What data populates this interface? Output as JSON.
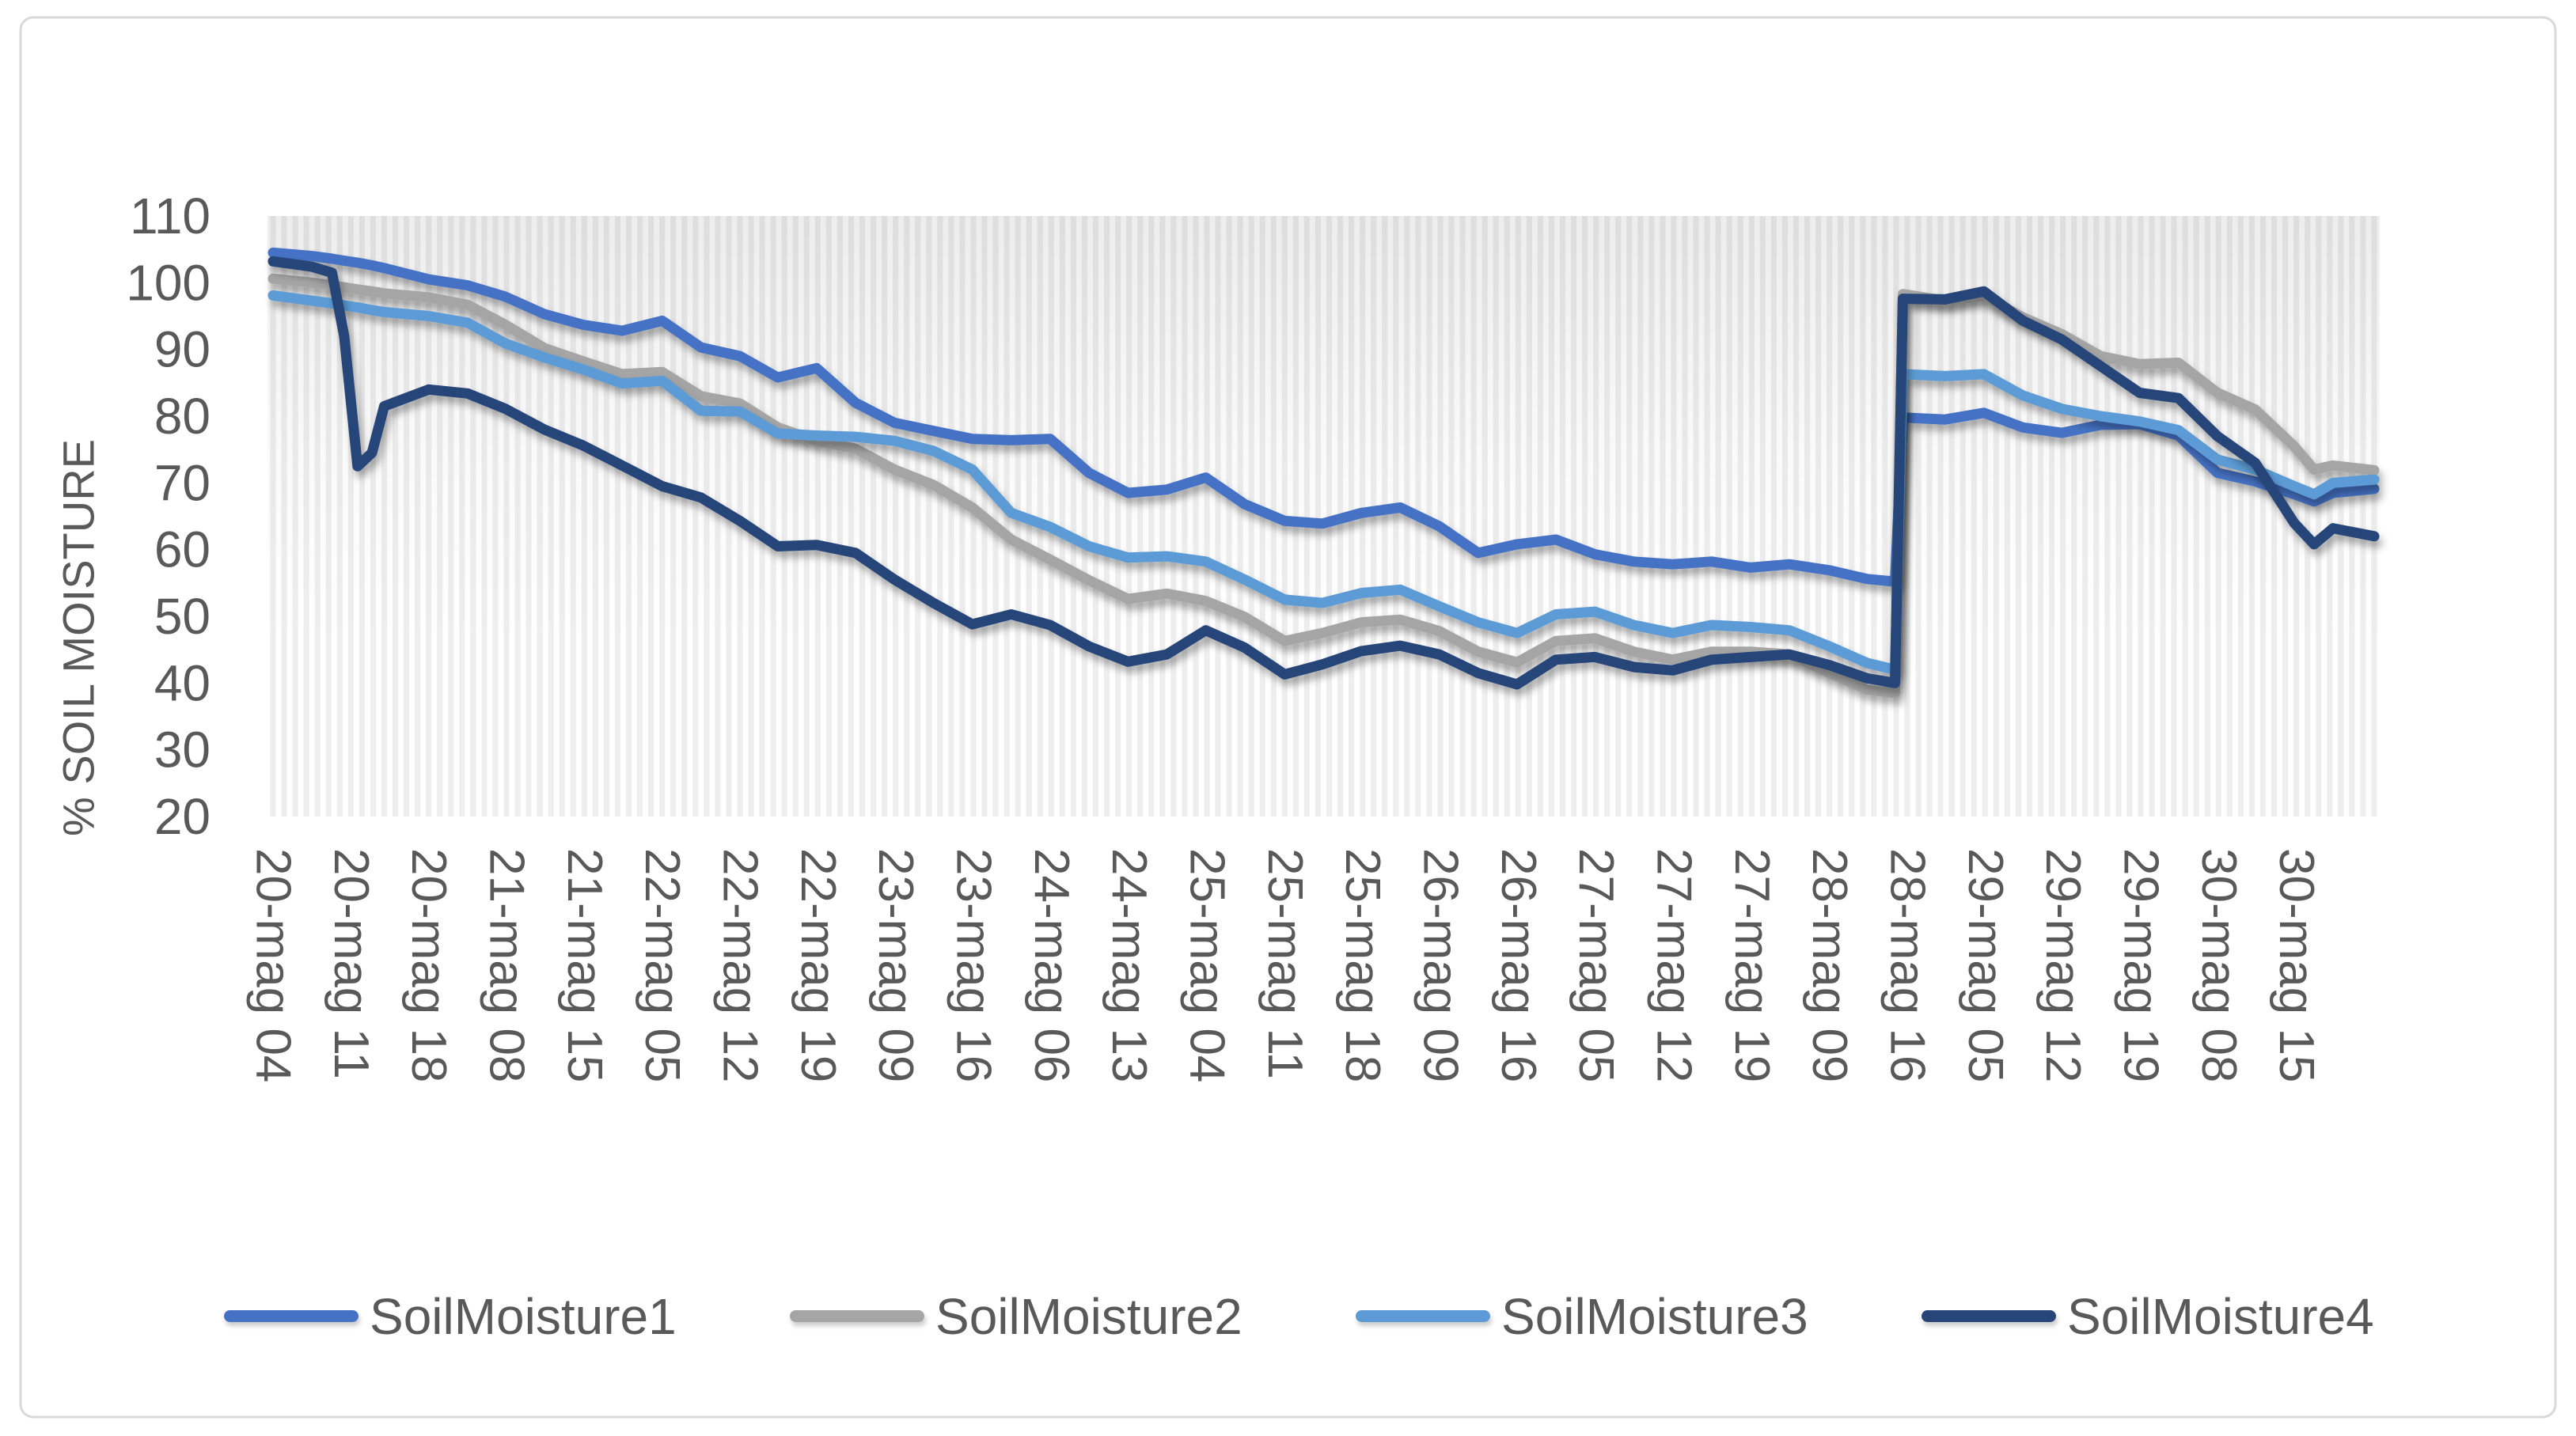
{
  "chart_data": {
    "type": "line",
    "title": "",
    "ylabel": "% SOIL MOISTURE",
    "xlabel": "",
    "ylim": [
      20,
      110
    ],
    "y_ticks": [
      110,
      100,
      90,
      80,
      70,
      60,
      50,
      40,
      30,
      20
    ],
    "x_tick_labels": [
      "20-mag 04",
      "20-mag 11",
      "20-mag 18",
      "21-mag 08",
      "21-mag 15",
      "22-mag 05",
      "22-mag 12",
      "22-mag 19",
      "23-mag 09",
      "23-mag 16",
      "24-mag 06",
      "24-mag 13",
      "25-mag 04",
      "25-mag 11",
      "25-mag 18",
      "26-mag 09",
      "26-mag 16",
      "27-mag 05",
      "27-mag 12",
      "27-mag 19",
      "28-mag 09",
      "28-mag 16",
      "29-mag 05",
      "29-mag 12",
      "29-mag 19",
      "30-mag 08",
      "30-mag 15"
    ],
    "x_label_step": 7,
    "x_categories_total": 190,
    "grid": "vertical-stripes",
    "legend_position": "bottom",
    "axis_text_color": "#595959",
    "border_color": "#D9D9D9",
    "sample_x_index": [
      0,
      3.5,
      5.3,
      6.4,
      7.6,
      8.9,
      10,
      14,
      17.5,
      20.9,
      24.4,
      27.9,
      31.4,
      35,
      38.5,
      42,
      45.4,
      48.9,
      52.4,
      55.9,
      59.4,
      62.9,
      66.4,
      69.9,
      73.4,
      76.9,
      80.4,
      83.9,
      87.4,
      91,
      94.4,
      97.9,
      101.4,
      104.9,
      108.4,
      111.9,
      115.4,
      118.9,
      122.4,
      125.9,
      129.4,
      132.9,
      136.4,
      140,
      143.4,
      145.9,
      146.6,
      150.4,
      153.9,
      157.4,
      160.9,
      164.4,
      167.9,
      171.4,
      174.9,
      178.3,
      181.8,
      183.6,
      185.3,
      189
    ],
    "series": [
      {
        "name": "SoilMoisture1",
        "color": "#4472C4",
        "values": [
          104.5,
          104,
          103.6,
          103.3,
          103,
          102.6,
          102.2,
          100.5,
          99.6,
          97.9,
          95.3,
          93.7,
          92.8,
          94.3,
          90.3,
          89,
          85.8,
          87.2,
          82,
          79,
          77.8,
          76.6,
          76.4,
          76.6,
          71.5,
          68.5,
          69,
          70.8,
          66.8,
          64.3,
          63.9,
          65.5,
          66.3,
          63.5,
          59.5,
          60.8,
          61.5,
          59.3,
          58.2,
          57.8,
          58.2,
          57.3,
          57.8,
          56.9,
          55.6,
          55.2,
          79.8,
          79.5,
          80.5,
          78.3,
          77.5,
          78.7,
          78.8,
          77.1,
          71.5,
          70.2,
          68.3,
          67.2,
          68.5,
          69.1
        ]
      },
      {
        "name": "SoilMoisture2",
        "color": "#A5A5A5",
        "values": [
          100.6,
          100,
          99.6,
          99.3,
          99,
          98.7,
          98.4,
          97.8,
          96.7,
          93.7,
          90.2,
          88.2,
          86.3,
          86.6,
          83,
          81.9,
          78.3,
          76.3,
          75.1,
          72,
          69.7,
          66.3,
          61.5,
          58.5,
          55.4,
          52.6,
          53.4,
          52.3,
          49.9,
          46.3,
          47.5,
          49.1,
          49.5,
          47.8,
          44.7,
          43.1,
          46.3,
          46.7,
          44.7,
          43.5,
          44.7,
          44.7,
          44.3,
          41.5,
          39,
          38.5,
          98.3,
          97.3,
          98,
          94.8,
          92.3,
          89,
          87.8,
          88,
          83.5,
          81,
          75.5,
          72,
          72.6,
          71.9
        ]
      },
      {
        "name": "SoilMoisture3",
        "color": "#5B9BD5",
        "values": [
          98.1,
          97.3,
          96.9,
          96.6,
          96.3,
          95.9,
          95.6,
          95,
          94,
          90.9,
          88.8,
          87,
          84.9,
          85.3,
          80.8,
          80.7,
          77.4,
          77.1,
          76.9,
          76.3,
          74.8,
          72,
          65.5,
          63.4,
          60.5,
          58.8,
          59,
          58.2,
          55.5,
          52.5,
          52,
          53.5,
          54,
          51.5,
          49.1,
          47.5,
          50.3,
          50.7,
          48.7,
          47.5,
          48.7,
          48.4,
          47.9,
          45.5,
          43,
          42,
          86.3,
          86,
          86.3,
          83.1,
          81.1,
          80,
          79.2,
          77.9,
          73.5,
          72,
          69.5,
          68.3,
          70,
          70.5
        ]
      },
      {
        "name": "SoilMoisture4",
        "color": "#264478",
        "values": [
          103.2,
          102.4,
          101.5,
          92,
          72.5,
          74.5,
          81.5,
          84,
          83.4,
          81.1,
          78,
          75.6,
          72.6,
          69.5,
          67.8,
          64.3,
          60.5,
          60.7,
          59.5,
          55.5,
          52,
          48.8,
          50.3,
          48.7,
          45.5,
          43.2,
          44.3,
          47.9,
          45.3,
          41.3,
          42.8,
          44.8,
          45.6,
          44.3,
          41.5,
          39.8,
          43.5,
          43.9,
          42.4,
          41.9,
          43.5,
          43.9,
          44.3,
          42.7,
          40.7,
          40,
          97.6,
          97.5,
          98.7,
          94.3,
          91.5,
          87.5,
          83.5,
          82.7,
          77,
          73,
          64,
          60.8,
          63.2,
          62
        ]
      }
    ]
  }
}
